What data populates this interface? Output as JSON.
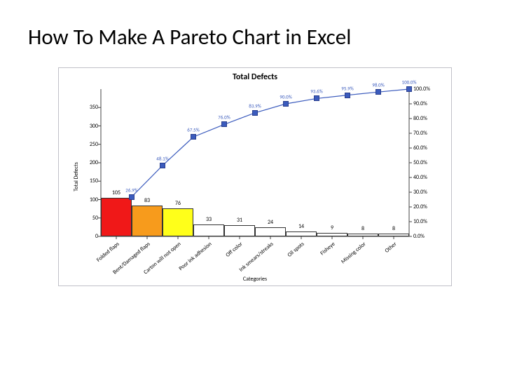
{
  "page_title": "How To Make A Pareto Chart in Excel",
  "chart": {
    "type": "pareto",
    "title": "Total Defects",
    "title_fontsize": 12,
    "background_color": "#ffffff",
    "border_color": "#c0c0c8",
    "y_left": {
      "label": "Total Defects",
      "min": 0,
      "max": 400,
      "tick_step": 50,
      "ticks": [
        0,
        50,
        100,
        150,
        200,
        250,
        300,
        350
      ]
    },
    "y_right": {
      "min": 0,
      "max": 100,
      "tick_step": 10,
      "ticks_fmt": [
        "0.0%",
        "10.0%",
        "20.0%",
        "30.0%",
        "40.0%",
        "50.0%",
        "60.0%",
        "70.0%",
        "80.0%",
        "90.0%",
        "100.0%"
      ]
    },
    "x": {
      "label": "Categories"
    },
    "categories": [
      "Folded flaps",
      "Bent/Damaged flaps",
      "Carton will not open",
      "Poor ink adhesion",
      "Off color",
      "Ink smears/streaks",
      "Oil spots",
      "Fisheye",
      "Missing color",
      "Other"
    ],
    "bar_values": [
      105,
      83,
      76,
      33,
      31,
      24,
      14,
      9,
      8,
      8
    ],
    "bar_colors": [
      "#f01818",
      "#f79b1c",
      "#ffff1a",
      "#ffffff",
      "#ffffff",
      "#ffffff",
      "#ffffff",
      "#ffffff",
      "#ffffff",
      "#ffffff"
    ],
    "bar_border_color": "#333333",
    "cum_pct": [
      26.9,
      48.1,
      67.5,
      76.0,
      83.9,
      90.0,
      93.6,
      95.9,
      98.0,
      100.0
    ],
    "cum_pct_labels": [
      "26.9%",
      "48.1%",
      "67.5%",
      "76.0%",
      "83.9%",
      "90.0%",
      "93.6%",
      "95.9%",
      "98.0%",
      "100.0%"
    ],
    "line_color": "#3b5bbd",
    "line_width": 1.2,
    "marker_style": "square",
    "marker_size": 6,
    "axis_color": "#444444",
    "start_line_color": "#f01818"
  }
}
